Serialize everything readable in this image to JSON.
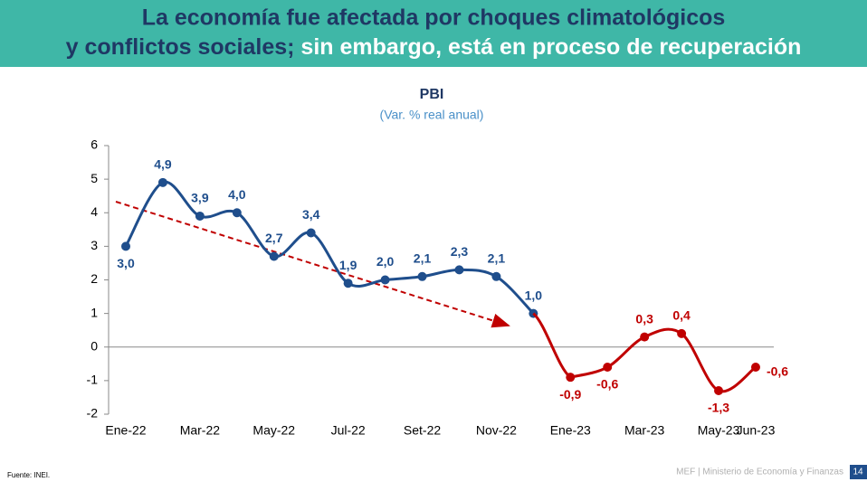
{
  "header": {
    "title_line1": "La economía fue afectada por choques climatológicos",
    "title_line2_a": "y conflictos sociales;",
    "title_line2_b": "sin embargo, está en proceso de recuperación"
  },
  "chart_data": {
    "type": "line",
    "title": "PBI",
    "subtitle": "(Var. % real anual)",
    "categories": [
      "Ene-22",
      null,
      "Mar-22",
      null,
      "May-22",
      null,
      "Jul-22",
      null,
      "Set-22",
      null,
      "Nov-22",
      null,
      "Ene-23",
      null,
      "Mar-23",
      null,
      "May-23",
      "Jun-23"
    ],
    "series": [
      {
        "color": "#1f4e8c",
        "values": [
          3.0,
          4.9,
          3.9,
          4.0,
          2.7,
          3.4,
          1.9,
          2.0,
          2.1,
          2.3,
          2.1,
          1.0,
          null,
          null,
          null,
          null,
          null,
          null
        ],
        "value_labels": [
          "3,0",
          "4,9",
          "3,9",
          "4,0",
          "2,7",
          "3,4",
          "1,9",
          "2,0",
          "2,1",
          "2,3",
          "2,1",
          "1,0",
          null,
          null,
          null,
          null,
          null,
          null
        ]
      },
      {
        "color": "#c00000",
        "values": [
          null,
          null,
          null,
          null,
          null,
          null,
          null,
          null,
          null,
          null,
          null,
          null,
          -0.9,
          -0.6,
          0.3,
          0.4,
          -1.3,
          -0.6
        ],
        "value_labels": [
          null,
          null,
          null,
          null,
          null,
          null,
          null,
          null,
          null,
          null,
          null,
          null,
          "-0,9",
          "-0,6",
          "0,3",
          "0,4",
          "-1,3",
          "-0,6"
        ]
      }
    ],
    "ylim": [
      -2,
      6
    ],
    "yticks": [
      -2,
      -1,
      0,
      1,
      2,
      3,
      4,
      5,
      6
    ]
  },
  "footer": {
    "source": "Fuente: INEI.",
    "ministry": "MEF | Ministerio de Economía y Finanzas",
    "page": "14"
  }
}
